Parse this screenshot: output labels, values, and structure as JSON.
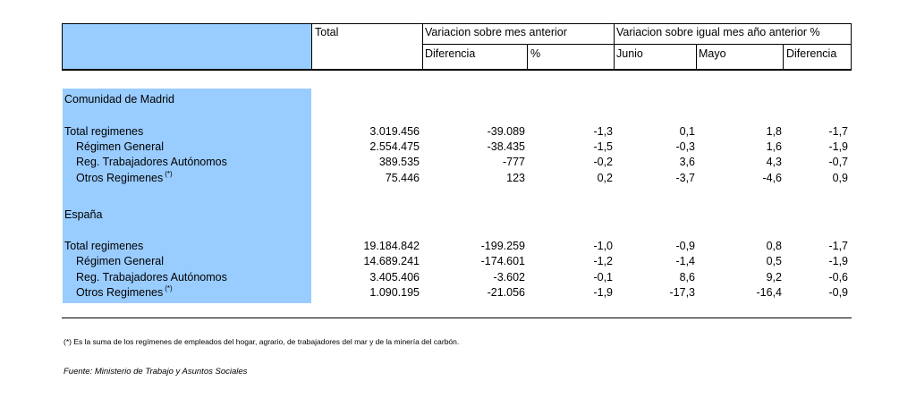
{
  "header": {
    "total": "Total",
    "var_mes": "Variacion sobre mes anterior",
    "var_anio": "Variacion sobre igual mes año anterior %",
    "diferencia": "Diferencia",
    "pct": "%",
    "junio": "Junio",
    "mayo": "Mayo",
    "diferencia2": "Diferencia"
  },
  "sections": [
    {
      "title": "Comunidad de Madrid",
      "rows": [
        {
          "label": "Total regimenes",
          "sup": "",
          "total": "3.019.456",
          "dif": "-39.089",
          "pct": "-1,3",
          "junio": "0,1",
          "mayo": "1,8",
          "dif2": "-1,7"
        },
        {
          "label": "Régimen General",
          "sup": "",
          "total": "2.554.475",
          "dif": "-38.435",
          "pct": "-1,5",
          "junio": "-0,3",
          "mayo": "1,6",
          "dif2": "-1,9"
        },
        {
          "label": "Reg. Trabajadores Autónomos",
          "sup": "",
          "total": "389.535",
          "dif": "-777",
          "pct": "-0,2",
          "junio": "3,6",
          "mayo": "4,3",
          "dif2": "-0,7"
        },
        {
          "label": "Otros Regimenes",
          "sup": "(*)",
          "total": "75.446",
          "dif": "123",
          "pct": "0,2",
          "junio": "-3,7",
          "mayo": "-4,6",
          "dif2": "0,9"
        }
      ]
    },
    {
      "title": "España",
      "rows": [
        {
          "label": "Total regimenes",
          "sup": "",
          "total": "19.184.842",
          "dif": "-199.259",
          "pct": "-1,0",
          "junio": "-0,9",
          "mayo": "0,8",
          "dif2": "-1,7"
        },
        {
          "label": "Régimen General",
          "sup": "",
          "total": "14.689.241",
          "dif": "-174.601",
          "pct": "-1,2",
          "junio": "-1,4",
          "mayo": "0,5",
          "dif2": "-1,9"
        },
        {
          "label": "Reg. Trabajadores Autónomos",
          "sup": "",
          "total": "3.405.406",
          "dif": "-3.602",
          "pct": "-0,1",
          "junio": "8,6",
          "mayo": "9,2",
          "dif2": "-0,6"
        },
        {
          "label": "Otros Regimenes",
          "sup": "(*)",
          "total": "1.090.195",
          "dif": "-21.056",
          "pct": "-1,9",
          "junio": "-17,3",
          "mayo": "-16,4",
          "dif2": "-0,9"
        }
      ]
    }
  ],
  "footnote": "(*) Es la suma de los regímenes de empleados del hogar, agrario, de trabajadores del mar y de la minería del carbón.",
  "source": "Fuente: Ministerio de Trabajo y Asuntos Sociales",
  "colors": {
    "label_bg": "#99ccff",
    "line": "#000000"
  }
}
